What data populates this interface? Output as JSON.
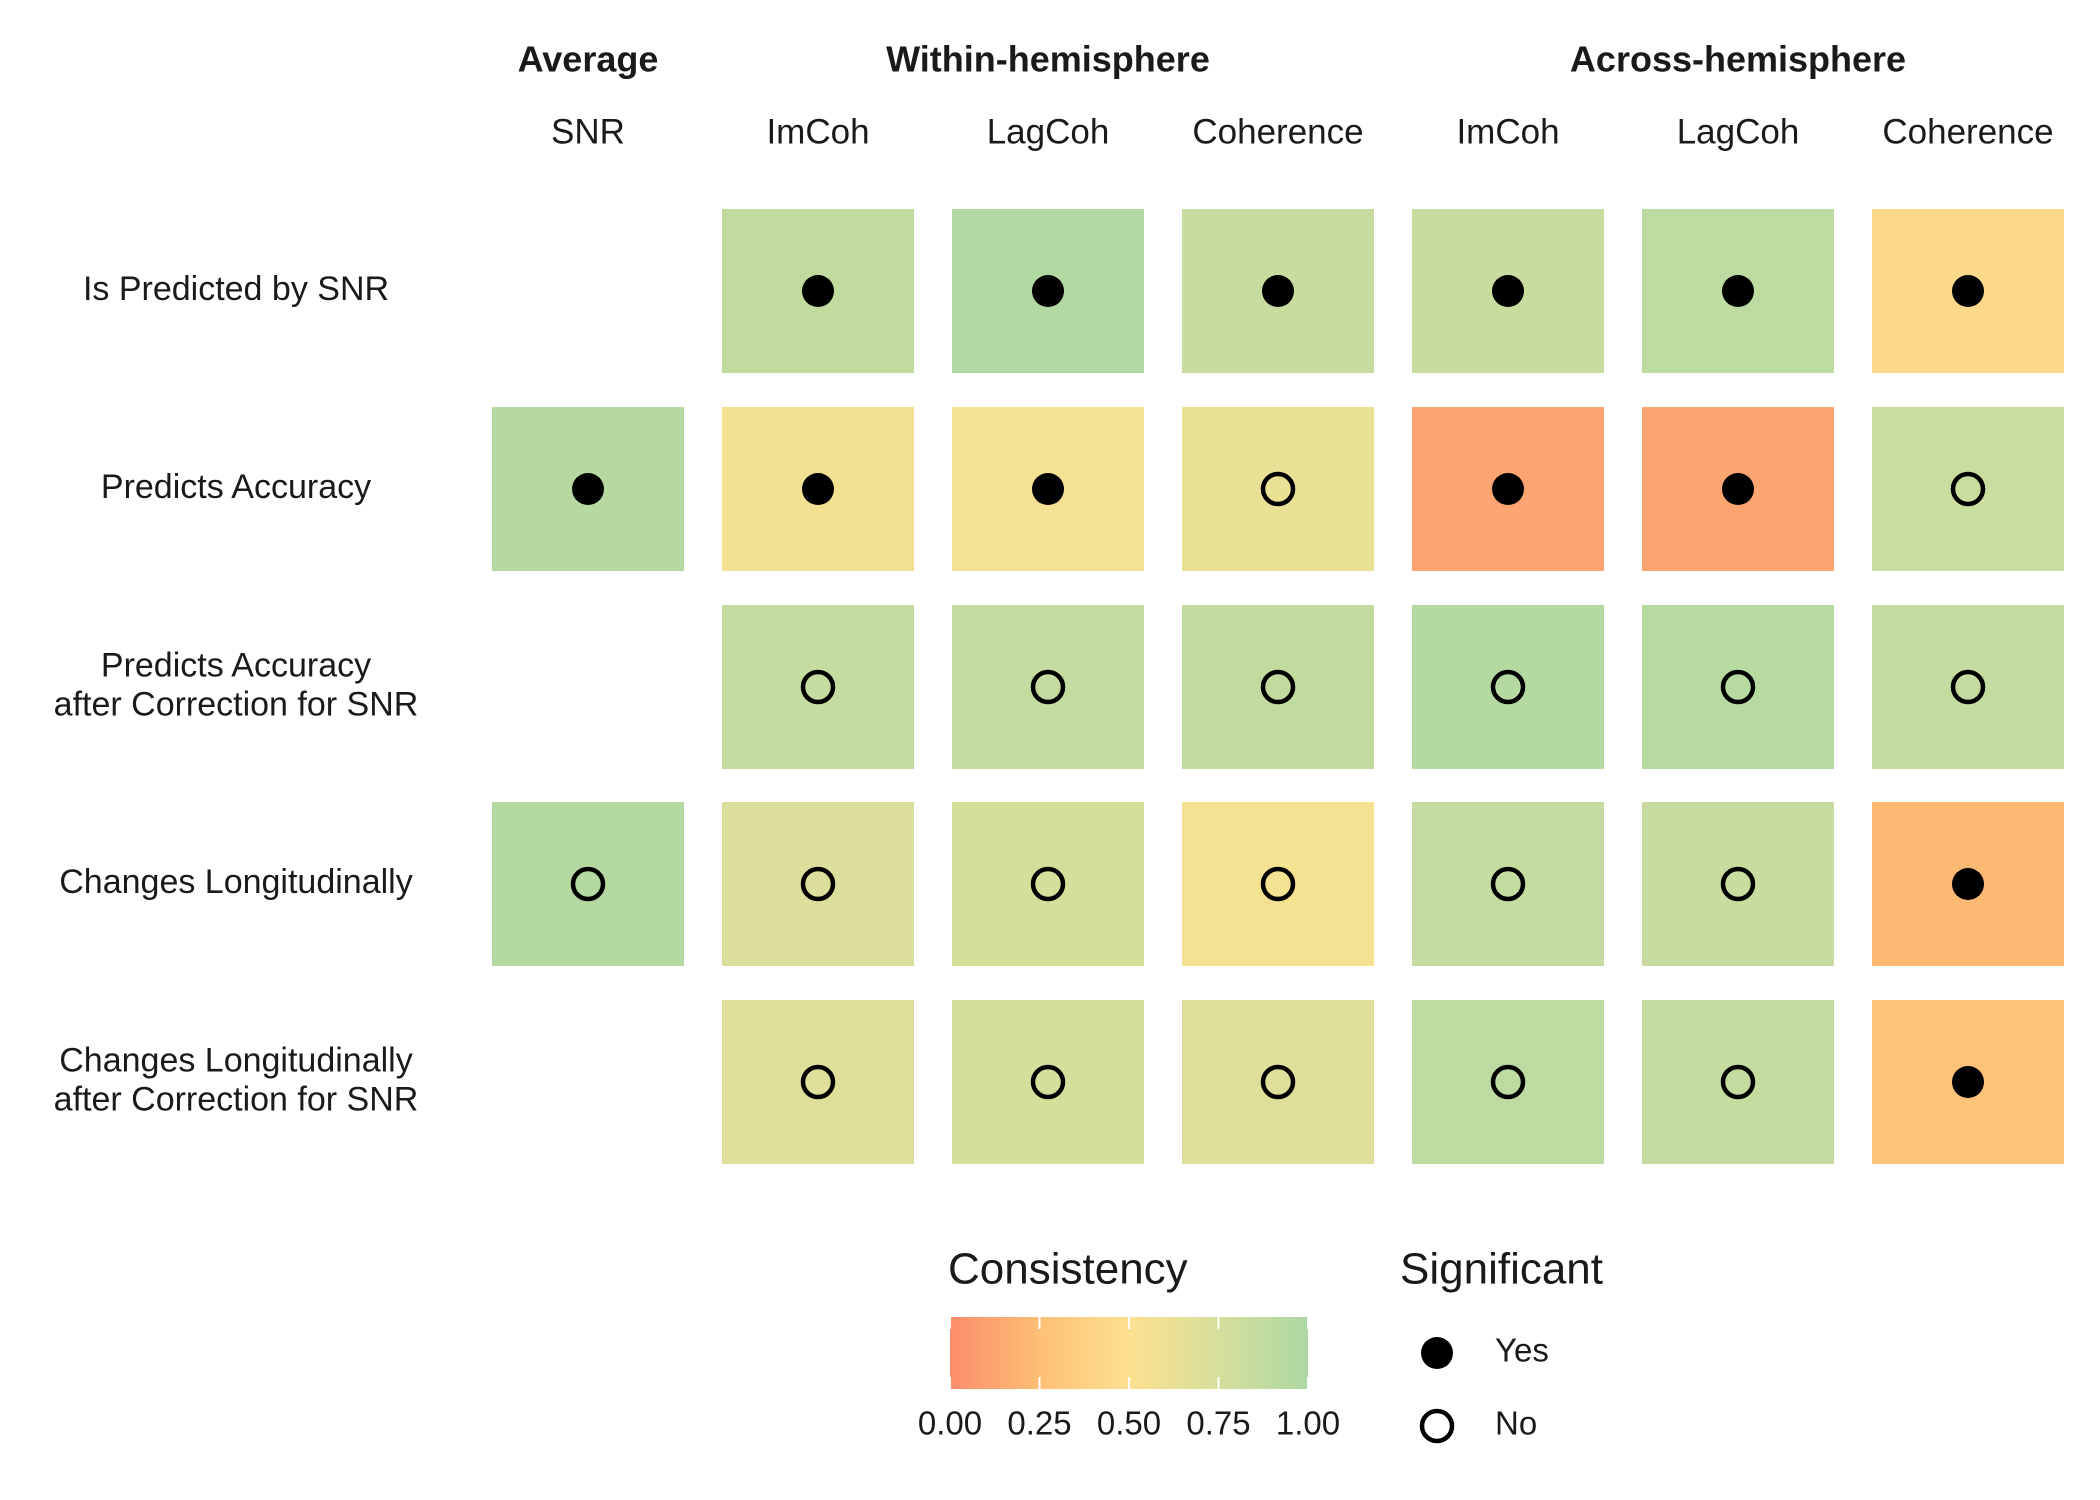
{
  "chart_data": {
    "type": "heatmap",
    "column_groups": [
      {
        "label": "Average",
        "columns": [
          "SNR"
        ]
      },
      {
        "label": "Within-hemisphere",
        "columns": [
          "ImCoh",
          "LagCoh",
          "Coherence"
        ]
      },
      {
        "label": "Across-hemisphere",
        "columns": [
          "ImCoh",
          "LagCoh",
          "Coherence"
        ]
      }
    ],
    "rows": [
      {
        "label_lines": [
          "Is Predicted by SNR"
        ],
        "cells": [
          null,
          {
            "value": 0.88,
            "significant": true
          },
          {
            "value": 0.97,
            "significant": true
          },
          {
            "value": 0.84,
            "significant": true
          },
          {
            "value": 0.84,
            "significant": true
          },
          {
            "value": 0.9,
            "significant": true
          },
          {
            "value": 0.45,
            "significant": true
          }
        ]
      },
      {
        "label_lines": [
          "Predicts Accuracy"
        ],
        "cells": [
          {
            "value": 0.95,
            "significant": true
          },
          {
            "value": 0.57,
            "significant": true
          },
          {
            "value": 0.55,
            "significant": true
          },
          {
            "value": 0.62,
            "significant": false
          },
          {
            "value": 0.12,
            "significant": true
          },
          {
            "value": 0.12,
            "significant": true
          },
          {
            "value": 0.83,
            "significant": false
          }
        ]
      },
      {
        "label_lines": [
          "Predicts Accuracy",
          "after Correction for SNR"
        ],
        "cells": [
          null,
          {
            "value": 0.86,
            "significant": false
          },
          {
            "value": 0.86,
            "significant": false
          },
          {
            "value": 0.88,
            "significant": false
          },
          {
            "value": 0.96,
            "significant": false
          },
          {
            "value": 0.94,
            "significant": false
          },
          {
            "value": 0.86,
            "significant": false
          }
        ]
      },
      {
        "label_lines": [
          "Changes Longitudinally"
        ],
        "cells": [
          {
            "value": 0.96,
            "significant": false
          },
          {
            "value": 0.72,
            "significant": false
          },
          {
            "value": 0.76,
            "significant": false
          },
          {
            "value": 0.55,
            "significant": false
          },
          {
            "value": 0.86,
            "significant": false
          },
          {
            "value": 0.84,
            "significant": false
          },
          {
            "value": 0.22,
            "significant": true
          }
        ]
      },
      {
        "label_lines": [
          "Changes Longitudinally",
          "after Correction for SNR"
        ],
        "cells": [
          null,
          {
            "value": 0.7,
            "significant": false
          },
          {
            "value": 0.76,
            "significant": false
          },
          {
            "value": 0.7,
            "significant": false
          },
          {
            "value": 0.9,
            "significant": false
          },
          {
            "value": 0.86,
            "significant": false
          },
          {
            "value": 0.28,
            "significant": true
          }
        ]
      }
    ],
    "color_scale": {
      "title": "Consistency",
      "min": 0,
      "max": 1,
      "ticks": [
        "0.00",
        "0.25",
        "0.50",
        "0.75",
        "1.00"
      ],
      "stops": [
        {
          "at": 0.0,
          "color": "#fc8d6b"
        },
        {
          "at": 0.25,
          "color": "#fdbf75"
        },
        {
          "at": 0.5,
          "color": "#fde190"
        },
        {
          "at": 0.75,
          "color": "#d6df9c"
        },
        {
          "at": 1.0,
          "color": "#add8a2"
        }
      ]
    },
    "shape_legend": {
      "title": "Significant",
      "items": [
        {
          "label": "Yes",
          "filled": true
        },
        {
          "label": "No",
          "filled": false
        }
      ]
    }
  }
}
